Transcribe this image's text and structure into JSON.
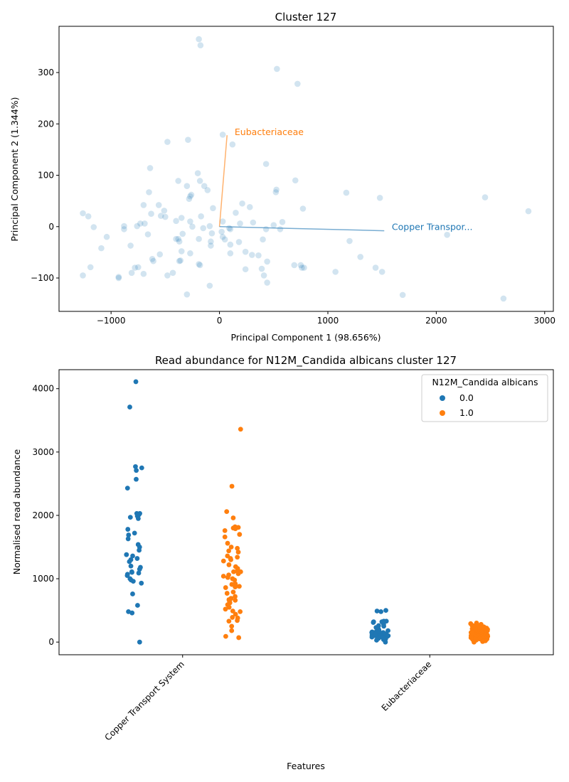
{
  "chart_data": [
    {
      "type": "scatter",
      "title": "Cluster 127",
      "xlabel": "Principal Component 1 (98.656%)",
      "ylabel": "Principal Component 2 (1.344%)",
      "xlim": [
        -1480,
        3080
      ],
      "ylim": [
        -165,
        390
      ],
      "xticks": [
        -1000,
        0,
        1000,
        2000,
        3000
      ],
      "yticks": [
        -100,
        0,
        100,
        200,
        300
      ],
      "point_color": "#1f77b4",
      "points": [
        [
          -190,
          365
        ],
        [
          -175,
          353
        ],
        [
          530,
          307
        ],
        [
          720,
          278
        ],
        [
          -480,
          165
        ],
        [
          -290,
          169
        ],
        [
          30,
          179
        ],
        [
          120,
          160
        ],
        [
          430,
          122
        ],
        [
          -640,
          114
        ],
        [
          -200,
          104
        ],
        [
          700,
          90
        ],
        [
          -380,
          89
        ],
        [
          -180,
          89
        ],
        [
          -300,
          79
        ],
        [
          -140,
          79
        ],
        [
          -110,
          71
        ],
        [
          -650,
          67
        ],
        [
          525,
          72
        ],
        [
          520,
          67
        ],
        [
          1170,
          66
        ],
        [
          -260,
          62
        ],
        [
          -270,
          59
        ],
        [
          1480,
          56
        ],
        [
          2450,
          57
        ],
        [
          -280,
          54
        ],
        [
          -560,
          42
        ],
        [
          -700,
          42
        ],
        [
          -60,
          36
        ],
        [
          280,
          38
        ],
        [
          210,
          45
        ],
        [
          -510,
          31
        ],
        [
          -630,
          25
        ],
        [
          150,
          27
        ],
        [
          770,
          35
        ],
        [
          2850,
          30
        ],
        [
          -1260,
          26
        ],
        [
          -1210,
          20
        ],
        [
          -540,
          21
        ],
        [
          -500,
          19
        ],
        [
          -350,
          17
        ],
        [
          -170,
          20
        ],
        [
          -270,
          10
        ],
        [
          -400,
          11
        ],
        [
          -730,
          6
        ],
        [
          -690,
          6
        ],
        [
          580,
          9
        ],
        [
          30,
          10
        ],
        [
          190,
          6
        ],
        [
          310,
          8
        ],
        [
          500,
          3
        ],
        [
          -1160,
          -1
        ],
        [
          -880,
          1
        ],
        [
          -760,
          1
        ],
        [
          -250,
          0
        ],
        [
          -90,
          1
        ],
        [
          -150,
          -3
        ],
        [
          90,
          -3
        ],
        [
          100,
          -5
        ],
        [
          430,
          -5
        ],
        [
          560,
          -5
        ],
        [
          -880,
          -5
        ],
        [
          -660,
          -15
        ],
        [
          -1040,
          -20
        ],
        [
          -340,
          -14
        ],
        [
          20,
          -10
        ],
        [
          30,
          -20
        ],
        [
          -70,
          -13
        ],
        [
          50,
          -25
        ],
        [
          -80,
          -29
        ],
        [
          -400,
          -24
        ],
        [
          -380,
          -24
        ],
        [
          -370,
          -29
        ],
        [
          400,
          -25
        ],
        [
          180,
          -30
        ],
        [
          -190,
          -24
        ],
        [
          1200,
          -28
        ],
        [
          2100,
          -16
        ],
        [
          -1090,
          -42
        ],
        [
          -820,
          -37
        ],
        [
          -80,
          -37
        ],
        [
          100,
          -35
        ],
        [
          -350,
          -48
        ],
        [
          -270,
          -52
        ],
        [
          -550,
          -54
        ],
        [
          100,
          -52
        ],
        [
          240,
          -49
        ],
        [
          300,
          -55
        ],
        [
          360,
          -56
        ],
        [
          1300,
          -59
        ],
        [
          -620,
          -63
        ],
        [
          -360,
          -66
        ],
        [
          -610,
          -67
        ],
        [
          -370,
          -67
        ],
        [
          -190,
          -73
        ],
        [
          -180,
          -75
        ],
        [
          440,
          -68
        ],
        [
          690,
          -75
        ],
        [
          750,
          -75
        ],
        [
          760,
          -80
        ],
        [
          780,
          -80
        ],
        [
          -1190,
          -79
        ],
        [
          -750,
          -79
        ],
        [
          -780,
          -80
        ],
        [
          240,
          -83
        ],
        [
          390,
          -82
        ],
        [
          -430,
          -90
        ],
        [
          -480,
          -95
        ],
        [
          -700,
          -92
        ],
        [
          -810,
          -90
        ],
        [
          1070,
          -88
        ],
        [
          1440,
          -80
        ],
        [
          1500,
          -88
        ],
        [
          -1260,
          -95
        ],
        [
          -930,
          -98
        ],
        [
          -930,
          -100
        ],
        [
          410,
          -95
        ],
        [
          440,
          -109
        ],
        [
          -300,
          -132
        ],
        [
          -90,
          -115
        ],
        [
          1690,
          -133
        ],
        [
          2620,
          -140
        ]
      ],
      "loadings": [
        {
          "label": "Eubacteriaceae",
          "color": "#ff7f0e",
          "end": [
            70,
            178
          ],
          "label_at": [
            140,
            184
          ]
        },
        {
          "label": "Copper Transpor...",
          "color": "#1f77b4",
          "end": [
            1520,
            -8
          ],
          "label_at": [
            1590,
            -1
          ]
        }
      ],
      "loading_origin": [
        0,
        0
      ],
      "point_opacity": 0.2,
      "grid": false
    },
    {
      "type": "strip",
      "title": "Read abundance for N12M_Candida albicans cluster 127",
      "xlabel": "Features",
      "ylabel": "Normalised read abundance",
      "categories": [
        "Copper Transport System",
        "Eubacteriaceae"
      ],
      "ylim": [
        -200,
        4300
      ],
      "yticks": [
        0,
        1000,
        2000,
        3000,
        4000
      ],
      "legend": {
        "title": "N12M_Candida albicans",
        "position": "top-right",
        "entries": [
          {
            "label": "0.0",
            "color": "#1f77b4"
          },
          {
            "label": "1.0",
            "color": "#ff7f0e"
          }
        ]
      },
      "grid": false,
      "series": [
        {
          "name": "0.0",
          "color": "#1f77b4",
          "values_by_category": [
            [
              4110,
              3710,
              2770,
              2750,
              2710,
              2570,
              2430,
              2030,
              2030,
              2010,
              1990,
              1970,
              1950,
              1780,
              1720,
              1690,
              1630,
              1540,
              1500,
              1450,
              1380,
              1360,
              1320,
              1300,
              1270,
              1200,
              1180,
              1150,
              1110,
              1100,
              1090,
              1070,
              1050,
              1000,
              980,
              960,
              930,
              760,
              580,
              480,
              460,
              0
            ],
            [
              500,
              490,
              480,
              330,
              330,
              320,
              320,
              310,
              280,
              260,
              250,
              230,
              210,
              200,
              190,
              180,
              170,
              160,
              160,
              150,
              150,
              150,
              140,
              140,
              140,
              130,
              130,
              130,
              120,
              120,
              120,
              120,
              110,
              110,
              110,
              110,
              100,
              100,
              100,
              100,
              100,
              90,
              90,
              90,
              80,
              80,
              70,
              60,
              50,
              40,
              30,
              0
            ]
          ]
        },
        {
          "name": "1.0",
          "color": "#ff7f0e",
          "values_by_category": [
            [
              3360,
              2460,
              2060,
              1960,
              1820,
              1810,
              1800,
              1790,
              1760,
              1700,
              1660,
              1560,
              1500,
              1480,
              1440,
              1420,
              1360,
              1340,
              1320,
              1300,
              1280,
              1220,
              1190,
              1160,
              1120,
              1110,
              1110,
              1080,
              1060,
              1040,
              1020,
              1000,
              980,
              920,
              910,
              910,
              900,
              880,
              870,
              860,
              790,
              770,
              720,
              690,
              670,
              660,
              640,
              620,
              590,
              550,
              520,
              490,
              480,
              440,
              390,
              380,
              340,
              330,
              250,
              180,
              90,
              70
            ],
            [
              300,
              290,
              280,
              270,
              260,
              260,
              250,
              250,
              240,
              240,
              230,
              230,
              220,
              220,
              220,
              210,
              210,
              200,
              200,
              200,
              190,
              190,
              190,
              180,
              180,
              180,
              180,
              170,
              170,
              170,
              160,
              160,
              160,
              160,
              150,
              150,
              150,
              150,
              150,
              140,
              140,
              140,
              140,
              140,
              130,
              130,
              130,
              130,
              130,
              120,
              120,
              120,
              120,
              120,
              120,
              110,
              110,
              110,
              110,
              110,
              110,
              100,
              100,
              100,
              100,
              100,
              100,
              90,
              90,
              90,
              90,
              90,
              90,
              80,
              80,
              80,
              80,
              80,
              70,
              70,
              70,
              70,
              70,
              60,
              60,
              60,
              60,
              50,
              50,
              50,
              50,
              40,
              40,
              40,
              30,
              30,
              30,
              20,
              20,
              10,
              10,
              0
            ]
          ]
        }
      ]
    }
  ]
}
